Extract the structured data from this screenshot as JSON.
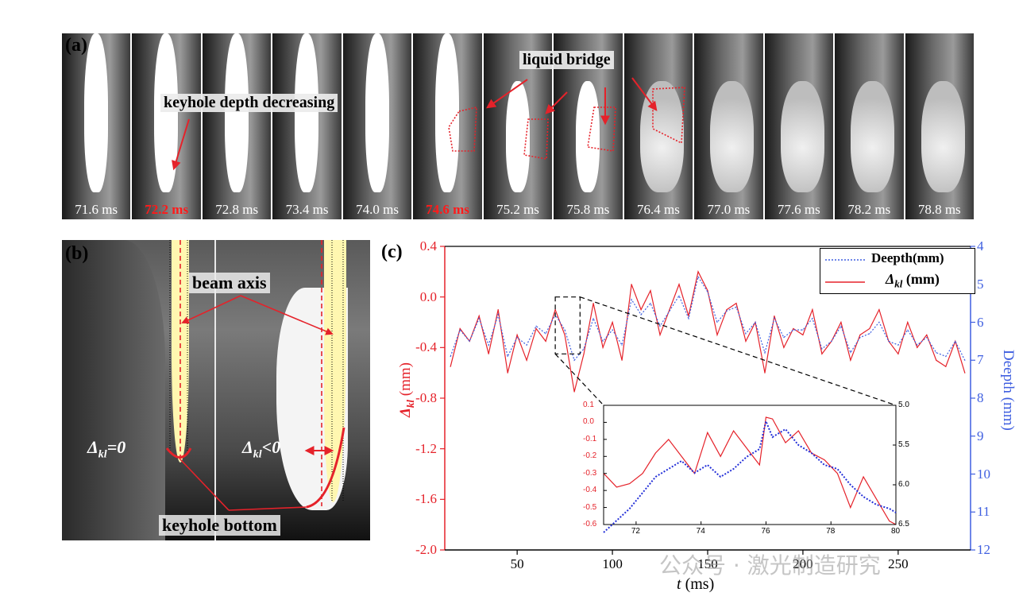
{
  "panel_a": {
    "label": "(a)",
    "frames": [
      {
        "time": "71.6 ms",
        "highlight": false
      },
      {
        "time": "72.2 ms",
        "highlight": true
      },
      {
        "time": "72.8 ms",
        "highlight": false
      },
      {
        "time": "73.4 ms",
        "highlight": false
      },
      {
        "time": "74.0 ms",
        "highlight": false
      },
      {
        "time": "74.6 ms",
        "highlight": true
      },
      {
        "time": "75.2 ms",
        "highlight": false
      },
      {
        "time": "75.8 ms",
        "highlight": false
      },
      {
        "time": "76.4 ms",
        "highlight": false
      },
      {
        "time": "77.0 ms",
        "highlight": false
      },
      {
        "time": "77.6 ms",
        "highlight": false
      },
      {
        "time": "78.2 ms",
        "highlight": false
      },
      {
        "time": "78.8 ms",
        "highlight": false
      }
    ],
    "annotation_depth": "keyhole depth decreasing",
    "annotation_bridge": "liquid bridge"
  },
  "panel_b": {
    "label": "(b)",
    "beam_axis": "beam axis",
    "keyhole_bottom": "keyhole bottom",
    "delta_zero": "Δ",
    "delta_sub": "kl",
    "delta_zero_rel": "=0",
    "delta_neg_rel": "<0"
  },
  "panel_c": {
    "label": "(c)",
    "watermark": "公众号 · 激光制造研究",
    "colors": {
      "delta": "#e5222a",
      "depth": "#3f5fe0"
    }
  },
  "chart_data": {
    "type": "line",
    "title": "",
    "xlabel_italic": "t",
    "xlabel_unit": " (ms)",
    "xlim": [
      12,
      288
    ],
    "xticks": [
      50,
      100,
      150,
      200,
      250
    ],
    "ylabel_left_symbol": "Δ",
    "ylabel_left_sub": "kl",
    "ylabel_left_unit": " (mm)",
    "ylim_left": [
      -2.0,
      0.4
    ],
    "yticks_left": [
      "0.4",
      "0.0",
      "-0.4",
      "-0.8",
      "-1.2",
      "-1.6",
      "-2.0"
    ],
    "ylabel_right": "Deepth (mm)",
    "ylim_right": [
      12,
      4
    ],
    "yticks_right": [
      "4",
      "5",
      "6",
      "7",
      "8",
      "9",
      "10",
      "11",
      "12"
    ],
    "legend": [
      {
        "name": "Deepth(mm)",
        "style": "dotted",
        "color": "#3f5fe0"
      },
      {
        "name_symbol": "Δ",
        "name_sub": "kl",
        "name_unit": " (mm)",
        "style": "solid",
        "color": "#e5222a"
      }
    ],
    "series": [
      {
        "name": "Δkl (mm)",
        "axis": "left",
        "color": "#e5222a",
        "x": [
          15,
          20,
          25,
          30,
          35,
          40,
          45,
          50,
          55,
          60,
          65,
          70,
          75,
          80,
          85,
          90,
          95,
          100,
          105,
          110,
          115,
          120,
          125,
          130,
          135,
          140,
          145,
          150,
          155,
          160,
          165,
          170,
          175,
          180,
          185,
          190,
          195,
          200,
          205,
          210,
          215,
          220,
          225,
          230,
          235,
          240,
          245,
          250,
          255,
          260,
          265,
          270,
          275,
          280,
          285
        ],
        "y": [
          -0.55,
          -0.25,
          -0.35,
          -0.15,
          -0.45,
          -0.1,
          -0.6,
          -0.3,
          -0.5,
          -0.25,
          -0.35,
          -0.1,
          -0.3,
          -0.75,
          -0.45,
          -0.05,
          -0.4,
          -0.2,
          -0.5,
          0.1,
          -0.1,
          0.05,
          -0.3,
          -0.1,
          0.1,
          -0.15,
          0.2,
          0.05,
          -0.3,
          -0.1,
          -0.05,
          -0.35,
          -0.2,
          -0.6,
          -0.15,
          -0.4,
          -0.25,
          -0.3,
          -0.1,
          -0.45,
          -0.35,
          -0.2,
          -0.5,
          -0.3,
          -0.25,
          -0.1,
          -0.35,
          -0.45,
          -0.2,
          -0.4,
          -0.3,
          -0.5,
          -0.55,
          -0.35,
          -0.6
        ]
      },
      {
        "name": "Deepth(mm)",
        "axis": "right",
        "color": "#3f5fe0",
        "x": [
          15,
          20,
          25,
          30,
          35,
          40,
          45,
          50,
          55,
          60,
          65,
          70,
          75,
          80,
          85,
          90,
          95,
          100,
          105,
          110,
          115,
          120,
          125,
          130,
          135,
          140,
          145,
          150,
          155,
          160,
          165,
          170,
          175,
          180,
          185,
          190,
          195,
          200,
          205,
          210,
          215,
          220,
          225,
          230,
          235,
          240,
          245,
          250,
          255,
          260,
          265,
          270,
          275,
          280,
          285
        ],
        "y": [
          6.9,
          6.2,
          6.5,
          5.9,
          6.6,
          5.8,
          6.9,
          6.4,
          6.6,
          6.1,
          6.3,
          5.8,
          6.2,
          7.0,
          6.7,
          5.9,
          6.5,
          6.2,
          6.6,
          5.4,
          5.8,
          5.5,
          6.1,
          5.7,
          5.3,
          5.9,
          4.8,
          5.2,
          6.0,
          5.7,
          5.6,
          6.3,
          6.0,
          6.8,
          5.9,
          6.4,
          6.2,
          6.2,
          5.9,
          6.7,
          6.5,
          6.1,
          6.8,
          6.4,
          6.3,
          6.0,
          6.5,
          6.6,
          6.2,
          6.6,
          6.4,
          6.8,
          6.9,
          6.5,
          7.0
        ]
      }
    ],
    "inset": {
      "xlim": [
        71,
        80
      ],
      "xticks": [
        "72",
        "74",
        "76",
        "78",
        "80"
      ],
      "ylim_left": [
        -0.6,
        0.1
      ],
      "yticks_left": [
        "0.1",
        "0.0",
        "-0.1",
        "-0.2",
        "-0.3",
        "-0.4",
        "-0.5",
        "-0.6"
      ],
      "ylim_right": [
        6.5,
        5.0
      ],
      "yticks_right": [
        "5.0",
        "5.5",
        "6.0",
        "6.5"
      ],
      "delta_x": [
        71,
        71.4,
        71.8,
        72.2,
        72.6,
        73.0,
        73.4,
        73.8,
        74.2,
        74.6,
        75.0,
        75.4,
        75.8,
        76.0,
        76.2,
        76.6,
        77.0,
        77.4,
        77.8,
        78.2,
        78.6,
        79.0,
        79.4,
        79.8,
        80
      ],
      "delta_y": [
        -0.3,
        -0.38,
        -0.36,
        -0.3,
        -0.18,
        -0.1,
        -0.2,
        -0.3,
        -0.06,
        -0.2,
        -0.05,
        -0.15,
        -0.25,
        0.03,
        0.02,
        -0.12,
        -0.05,
        -0.18,
        -0.22,
        -0.3,
        -0.5,
        -0.32,
        -0.45,
        -0.58,
        -0.6
      ],
      "depth_x": [
        71,
        71.4,
        71.8,
        72.2,
        72.6,
        73.0,
        73.4,
        73.8,
        74.2,
        74.6,
        75.0,
        75.4,
        75.8,
        76.0,
        76.2,
        76.6,
        77.0,
        77.4,
        77.8,
        78.2,
        78.6,
        79.0,
        79.4,
        79.8,
        80
      ],
      "depth_y": [
        6.6,
        6.45,
        6.3,
        6.1,
        5.9,
        5.8,
        5.7,
        5.85,
        5.75,
        5.9,
        5.8,
        5.65,
        5.55,
        5.2,
        5.4,
        5.3,
        5.5,
        5.6,
        5.75,
        5.8,
        6.0,
        6.15,
        6.25,
        6.3,
        6.35
      ]
    }
  }
}
